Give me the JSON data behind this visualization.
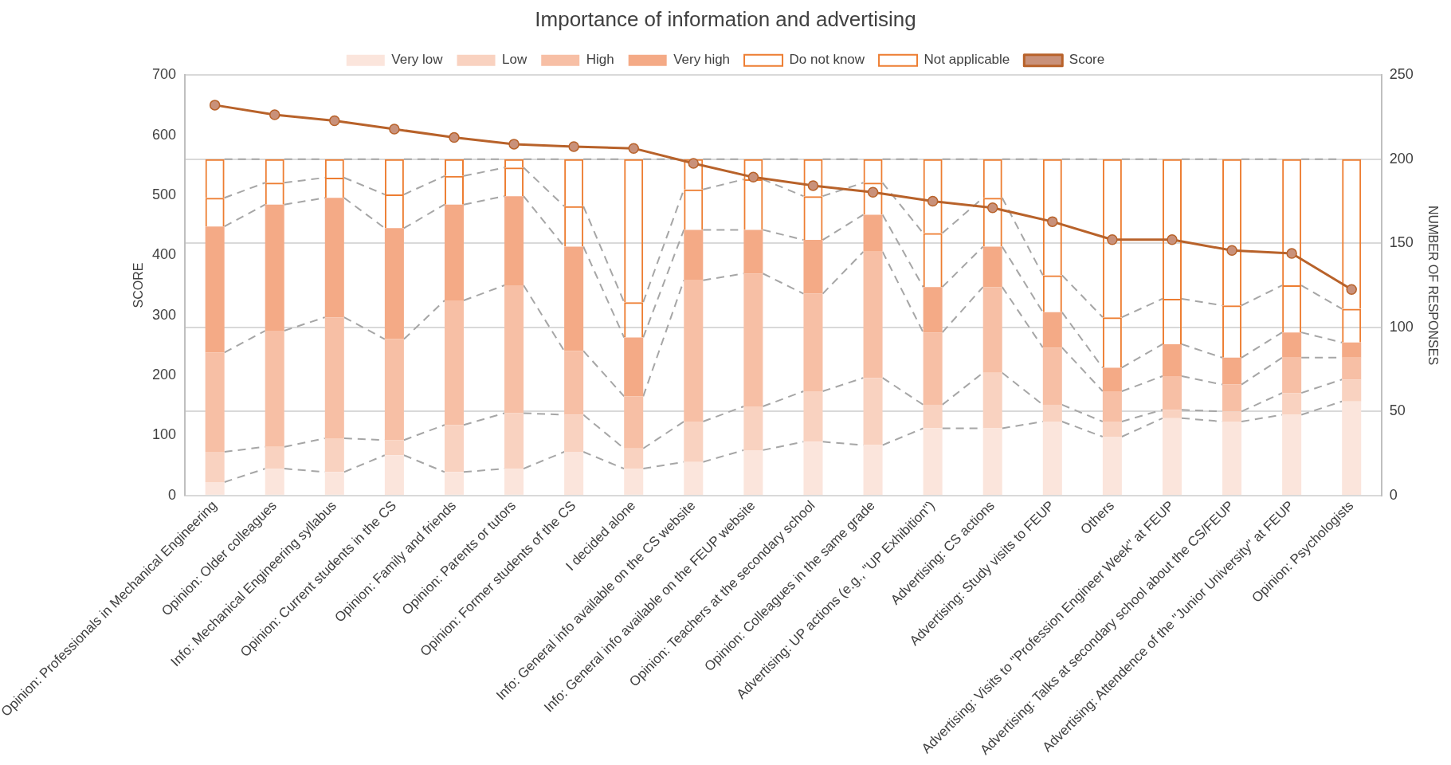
{
  "chart_data": {
    "type": "bar",
    "title": "Importance of information and advertising",
    "ylabel": "SCORE",
    "y2label": "NUMBER OF RESPONSES",
    "categories": [
      "Opinion: Professionals in Mechanical Engineering",
      "Opinion: Older colleagues",
      "Info: Mechanical Engineering syllabus",
      "Opinion: Current students in the CS",
      "Opinion: Family and friends",
      "Opinion: Parents or tutors",
      "Opinion: Former students of the CS",
      "I decided alone",
      "Info: General info available on the CS website",
      "Info: General info available on the FEUP website",
      "Opinion: Teachers at the secondary school",
      "Opinion: Colleagues in the same grade",
      "Advertising: UP actions (e.g., \"UP Exhibition\")",
      "Advertising: CS actions",
      "Advertising: Study visits to FEUP",
      "Others",
      "Advertising: Visits to \"Profession Engineer Week\" at FEUP",
      "Advertising: Talks at secondary school about the CS/FEUP",
      "Advertising: Attendence of the \"Junior University\" at FEUP",
      "Opinion: Psychologists"
    ],
    "stacked": true,
    "grid": true,
    "legend": "top",
    "ylim": [
      0,
      700
    ],
    "yticks": [
      0,
      100,
      200,
      300,
      400,
      500,
      600,
      700
    ],
    "y2lim": [
      0,
      250
    ],
    "y2ticks": [
      0,
      50,
      100,
      150,
      200,
      250
    ],
    "series": [
      {
        "name": "Very low",
        "axis": "y2",
        "color": "#fbe5dc",
        "values": [
          8,
          16,
          14,
          24,
          14,
          16,
          26,
          16,
          20,
          27,
          32,
          30,
          40,
          40,
          44,
          35,
          46,
          44,
          48,
          56
        ]
      },
      {
        "name": "Low",
        "axis": "y2",
        "color": "#f9d2c0",
        "values": [
          18,
          13,
          20,
          9,
          28,
          33,
          22,
          12,
          24,
          26,
          30,
          40,
          14,
          33,
          10,
          9,
          5,
          6,
          13,
          13
        ]
      },
      {
        "name": "High",
        "axis": "y2",
        "color": "#f7bfa5",
        "values": [
          59,
          69,
          72,
          60,
          74,
          76,
          38,
          31,
          84,
          79,
          58,
          75,
          43,
          51,
          34,
          18,
          20,
          16,
          21,
          13
        ]
      },
      {
        "name": "Very high",
        "axis": "y2",
        "color": "#f4aa86",
        "values": [
          75,
          75,
          71,
          66,
          57,
          53,
          62,
          35,
          30,
          26,
          32,
          22,
          27,
          24,
          21,
          14,
          19,
          16,
          15,
          9
        ]
      },
      {
        "name": "Do not know",
        "axis": "y2",
        "color": "#ed7d31",
        "values": [
          17,
          13,
          12,
          20,
          17,
          17,
          24,
          21,
          24,
          30,
          26,
          19,
          32,
          29,
          22,
          30,
          27,
          31,
          28,
          20
        ]
      },
      {
        "name": "Not applicable",
        "axis": "y2",
        "color": "#ed7d31",
        "values": [
          23,
          14,
          11,
          21,
          10,
          5,
          28,
          85,
          18,
          12,
          22,
          14,
          44,
          23,
          69,
          94,
          83,
          87,
          75,
          89
        ]
      },
      {
        "name": "Score",
        "type": "line",
        "axis": "y",
        "color": "#b8622a",
        "marker": "circle",
        "values": [
          650,
          634,
          624,
          610,
          596,
          585,
          581,
          578,
          553,
          530,
          516,
          505,
          490,
          479,
          456,
          426,
          426,
          408,
          403,
          343
        ]
      }
    ]
  }
}
